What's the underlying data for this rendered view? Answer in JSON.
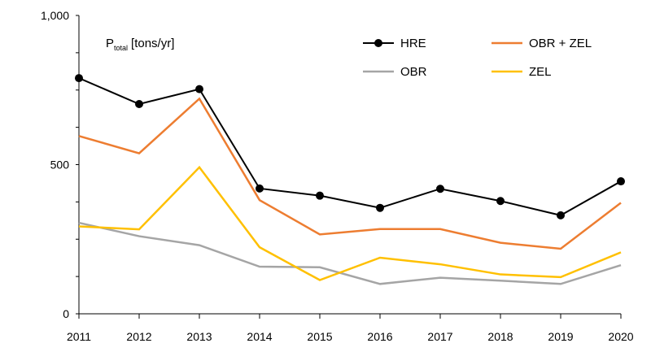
{
  "chart_data": {
    "type": "line",
    "x": [
      2011,
      2012,
      2013,
      2014,
      2015,
      2016,
      2017,
      2018,
      2019,
      2020
    ],
    "ylim": [
      0,
      1000
    ],
    "yticks": [
      "0",
      "500",
      "1,000"
    ],
    "xticks": [
      "2011",
      "2012",
      "2013",
      "2014",
      "2015",
      "2016",
      "2017",
      "2018",
      "2019",
      "2020"
    ],
    "annotation": {
      "symbol": "P",
      "subscript": "total",
      "unit": "[tons/yr]"
    },
    "grid": false,
    "legend_position": "top-right",
    "series": [
      {
        "name": "HRE",
        "color": "#000000",
        "marker": "circle",
        "values": [
          790,
          703,
          753,
          420,
          396,
          355,
          419,
          378,
          330,
          444
        ]
      },
      {
        "name": "OBR + ZEL",
        "color": "#ED7D31",
        "marker": "none",
        "values": [
          596,
          538,
          721,
          381,
          266,
          284,
          284,
          238,
          218,
          372
        ]
      },
      {
        "name": "OBR",
        "color": "#A5A5A5",
        "marker": "none",
        "values": [
          305,
          260,
          230,
          158,
          156,
          100,
          121,
          111,
          100,
          163
        ]
      },
      {
        "name": "ZEL",
        "color": "#FFC000",
        "marker": "none",
        "values": [
          293,
          283,
          491,
          223,
          113,
          188,
          166,
          132,
          123,
          206
        ]
      }
    ]
  }
}
